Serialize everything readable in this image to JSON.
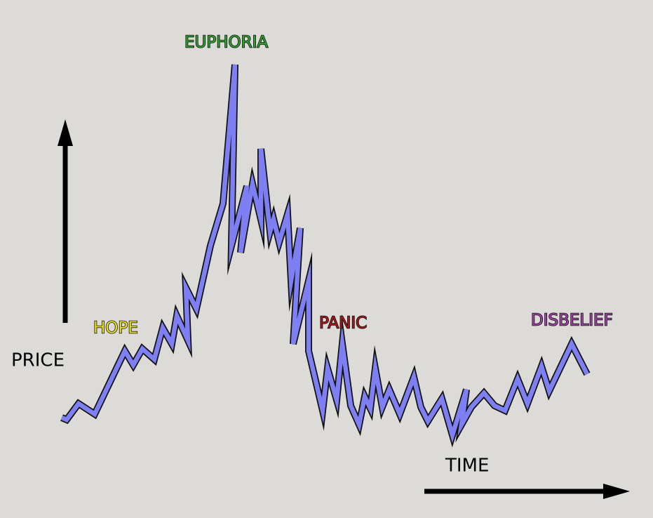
{
  "axes": {
    "y_label": "PRICE",
    "x_label": "TIME"
  },
  "phases": [
    {
      "label": "HOPE"
    },
    {
      "label": "EUPHORIA"
    },
    {
      "label": "PANIC"
    },
    {
      "label": "DISBELIEF"
    }
  ]
}
